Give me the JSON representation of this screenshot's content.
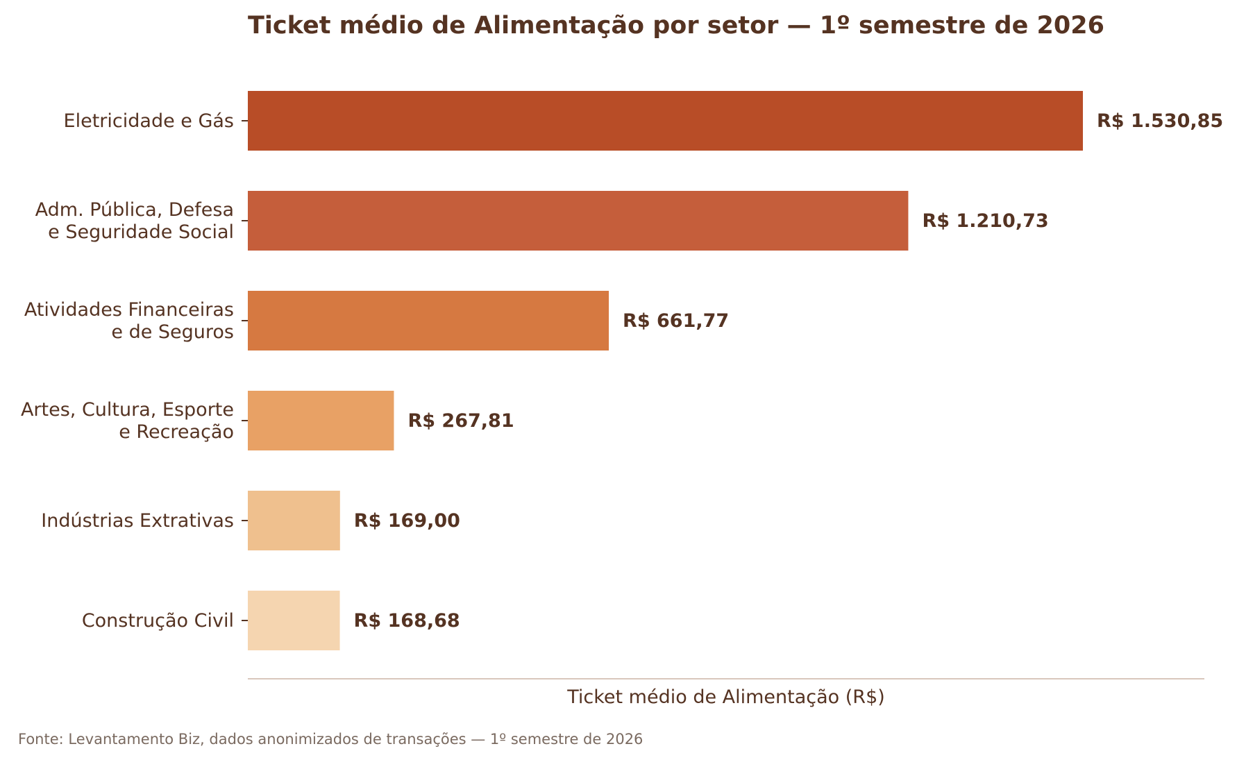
{
  "chart_data": {
    "type": "bar",
    "orientation": "horizontal",
    "title": "Ticket médio de Alimentação por setor — 1º semestre de 2026",
    "xlabel": "Ticket médio de Alimentação (R$)",
    "ylabel": "",
    "source_note": "Fonte: Levantamento Biz, dados anonimizados de transações — 1º semestre de 2026",
    "xlim": [
      0,
      1750
    ],
    "grid": false,
    "legend": "none",
    "categories": [
      [
        "Eletricidade e Gás"
      ],
      [
        "Adm. Pública, Defesa",
        "e Seguridade Social"
      ],
      [
        "Atividades Financeiras",
        "e de Seguros"
      ],
      [
        "Artes, Cultura, Esporte",
        "e Recreação"
      ],
      [
        "Indústrias Extrativas"
      ],
      [
        "Construção Civil"
      ]
    ],
    "values": [
      1530.85,
      1210.73,
      661.77,
      267.81,
      169.0,
      168.68
    ],
    "value_labels": [
      "R$ 1.530,85",
      "R$ 1.210,73",
      "R$ 661,77",
      "R$ 267,81",
      "R$ 169,00",
      "R$ 168,68"
    ],
    "colors": [
      "#b84d27",
      "#c55e3b",
      "#d67941",
      "#e8a165",
      "#efc08e",
      "#f5d5b0"
    ],
    "text_color": "#553322",
    "note_color": "#7a6a60",
    "axis_color": "#d9c7bc"
  }
}
